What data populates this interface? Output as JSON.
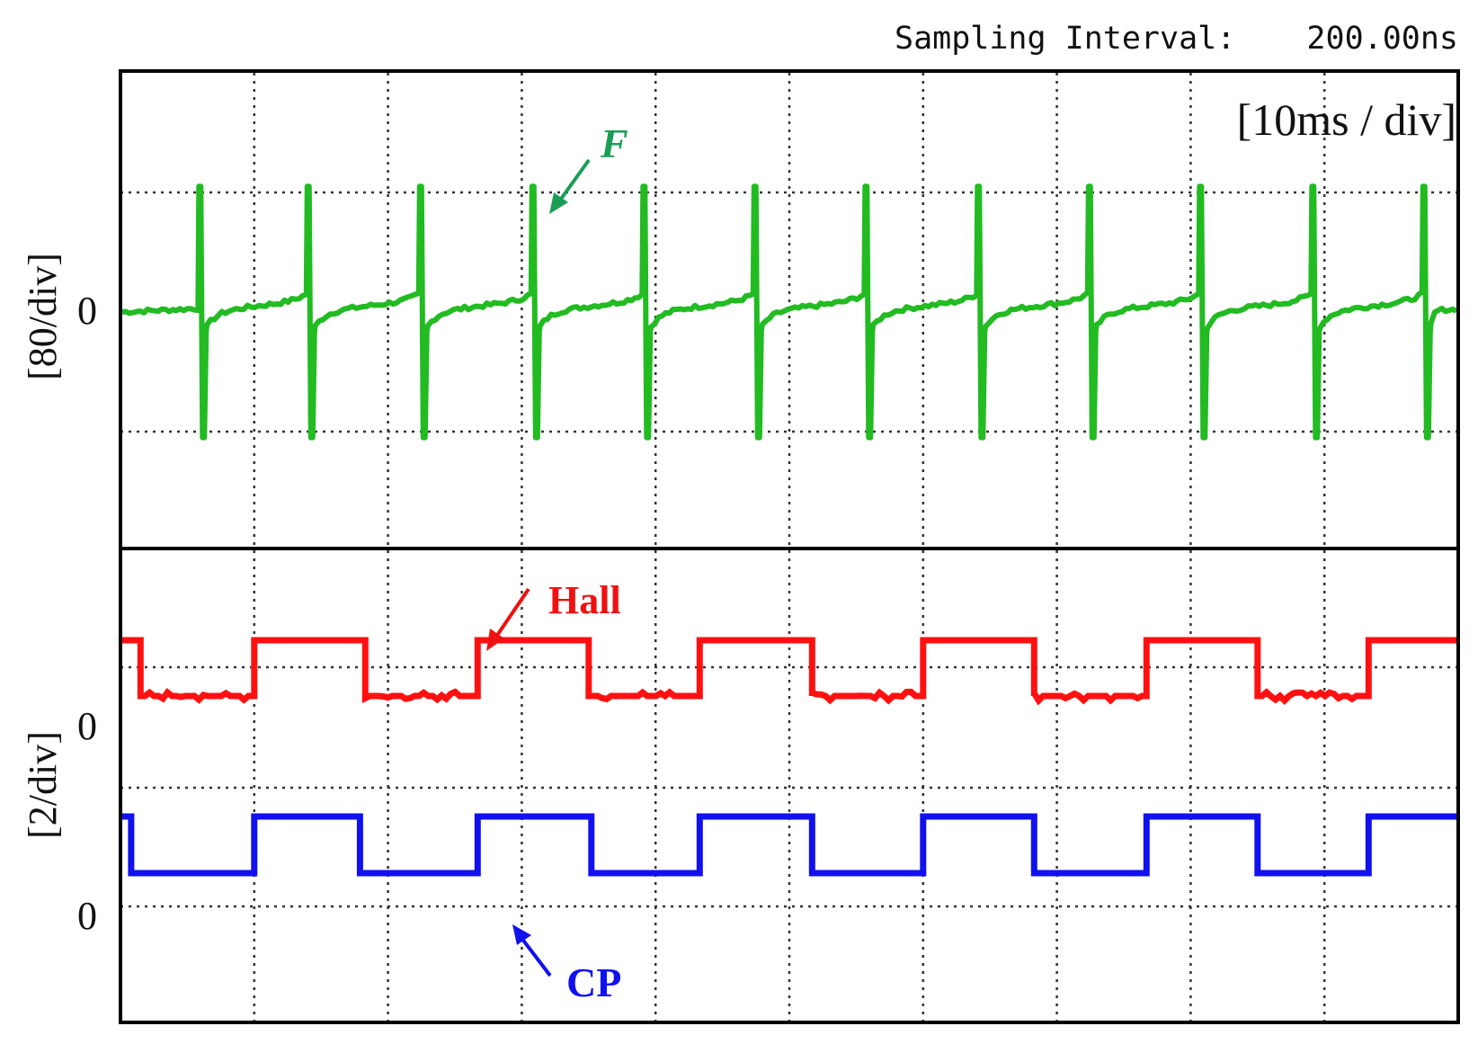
{
  "header": {
    "sampling_label": "Sampling Interval:",
    "sampling_value": "200.00ns"
  },
  "chart_data": {
    "type": "line",
    "time_scale_label": "[10ms / div]",
    "x_divisions": 10,
    "x_unit": "ms",
    "x_per_div": 10,
    "grid": true,
    "panels": [
      {
        "name": "top",
        "y_label": "[80/div]",
        "zero_label": "0",
        "series": [
          {
            "name": "F",
            "color": "#22bb22",
            "kind": "spike-train",
            "baseline": 0,
            "spike_peak": 1.05,
            "spike_trough": -1.05,
            "pulses_at_div": [
              0.58,
              1.39,
              2.23,
              3.07,
              3.9,
              4.73,
              5.56,
              6.4,
              7.23,
              8.06,
              8.9,
              9.73
            ]
          }
        ]
      },
      {
        "name": "bottom",
        "y_label": "[2/div]",
        "zero_labels": [
          "0",
          "0"
        ],
        "series": [
          {
            "name": "Hall",
            "color": "#ff1111",
            "kind": "square",
            "high_value": 1,
            "low_value": 0,
            "start_level": "high",
            "transitions_at_div": [
              0.15,
              1.0,
              1.83,
              2.67,
              3.5,
              4.33,
              5.17,
              6.0,
              6.83,
              7.67,
              8.5,
              9.33
            ]
          },
          {
            "name": "CP",
            "color": "#1111ee",
            "kind": "square",
            "high_value": 1,
            "low_value": 0,
            "start_level": "high",
            "transitions_at_div": [
              0.08,
              1.0,
              1.79,
              2.67,
              3.52,
              4.33,
              5.17,
              6.0,
              6.83,
              7.67,
              8.5,
              9.33
            ]
          }
        ]
      }
    ]
  }
}
